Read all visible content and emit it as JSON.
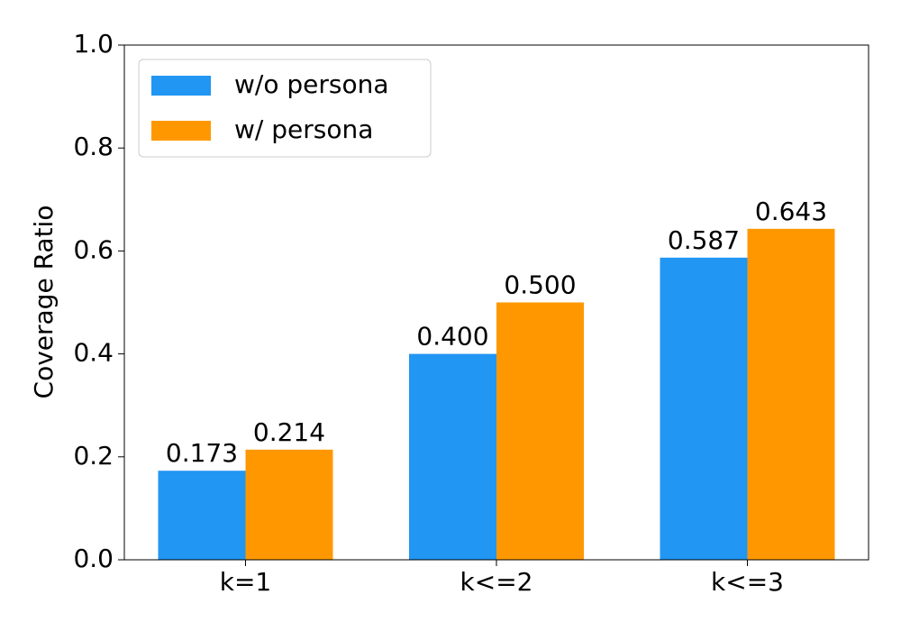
{
  "chart_data": {
    "type": "bar",
    "ylabel": "Coverage Ratio",
    "categories": [
      "k=1",
      "k<=2",
      "k<=3"
    ],
    "series": [
      {
        "name": "w/o persona",
        "color": "#2196f3",
        "values": [
          0.173,
          0.4,
          0.587
        ],
        "value_labels": [
          "0.173",
          "0.400",
          "0.587"
        ]
      },
      {
        "name": "w/ persona",
        "color": "#ff9800",
        "values": [
          0.214,
          0.5,
          0.643
        ],
        "value_labels": [
          "0.214",
          "0.500",
          "0.643"
        ]
      }
    ],
    "ylim": [
      0,
      1
    ],
    "yticks": [
      {
        "value": 0,
        "label": "0.0"
      },
      0.2,
      0.4,
      0.6,
      0.8,
      {
        "value": 1,
        "label": "1.0"
      }
    ],
    "legend": "upper-left"
  }
}
